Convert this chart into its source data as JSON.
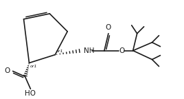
{
  "bg_color": "#ffffff",
  "line_color": "#1a1a1a",
  "lw": 1.2,
  "fig_width": 2.68,
  "fig_height": 1.44,
  "dpi": 100,
  "xlim": [
    0,
    268
  ],
  "ylim": [
    0,
    144
  ]
}
